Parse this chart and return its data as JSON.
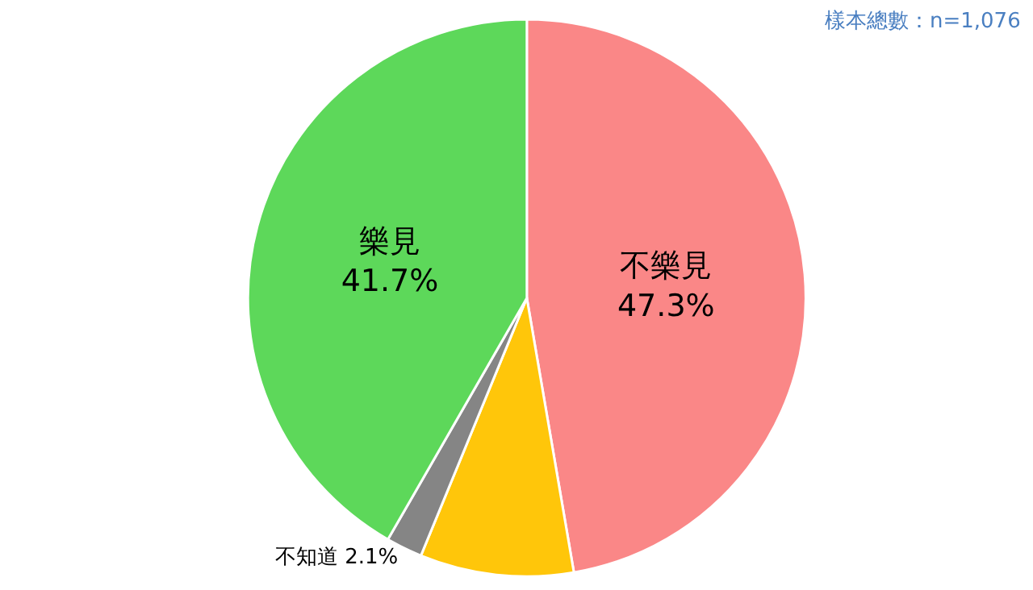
{
  "chart_data": {
    "type": "pie",
    "categories": [
      "不樂見",
      null,
      "不知道",
      "樂見"
    ],
    "values": [
      47.3,
      8.9,
      2.1,
      41.7
    ],
    "value_labels": [
      "47.3%",
      null,
      "2.1%",
      "41.7%"
    ],
    "colors": [
      "#fa8787",
      "#ffc60a",
      "#858585",
      "#5dd85a"
    ],
    "legend": false,
    "annotations": [
      "樣本總數：n=1,076"
    ]
  }
}
